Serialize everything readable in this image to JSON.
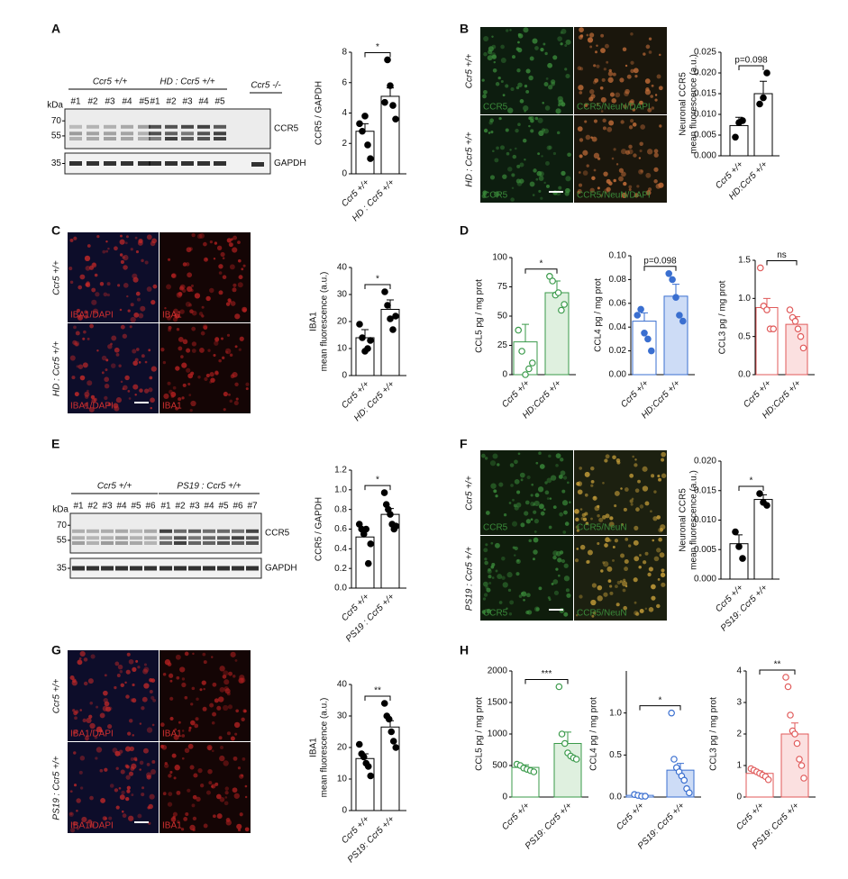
{
  "panels": [
    "A",
    "B",
    "C",
    "D",
    "E",
    "F",
    "G",
    "H"
  ],
  "blot_A": {
    "groups": [
      "Ccr5 +/+",
      "HD : Ccr5 +/+",
      "Ccr5 -/-"
    ],
    "lanes": [
      "#1",
      "#2",
      "#3",
      "#4",
      "#5",
      "#1",
      "#2",
      "#3",
      "#4",
      "#5"
    ],
    "kda": "kDa",
    "markers": [
      "70",
      "55",
      "35"
    ],
    "bands": [
      "CCR5",
      "GAPDH"
    ]
  },
  "blot_E": {
    "groups": [
      "Ccr5 +/+",
      "PS19 : Ccr5 +/+"
    ],
    "lanes": [
      "#1",
      "#2",
      "#3",
      "#4",
      "#5",
      "#6",
      "#1",
      "#2",
      "#3",
      "#4",
      "#5",
      "#6",
      "#7"
    ],
    "kda": "kDa",
    "markers": [
      "70",
      "55",
      "35"
    ],
    "bands": [
      "CCR5",
      "GAPDH"
    ]
  },
  "image_B": {
    "rows": [
      "Ccr5 +/+",
      "HD : Ccr5 +/+"
    ],
    "channels": [
      "CCR5",
      "CCR5/NeuN/DAPI"
    ]
  },
  "image_C": {
    "rows": [
      "Ccr5 +/+",
      "HD : Ccr5 +/+"
    ],
    "channels": [
      "IBA1/DAPI",
      "IBA1"
    ]
  },
  "image_F": {
    "rows": [
      "Ccr5 +/+",
      "PS19 : Ccr5 +/+"
    ],
    "channels": [
      "CCR5",
      "CCR5/NeuN"
    ]
  },
  "image_G": {
    "rows": [
      "Ccr5 +/+",
      "PS19 : Ccr5 +/+"
    ],
    "channels": [
      "IBA1/DAPI",
      "IBA1"
    ]
  },
  "chart_data": [
    {
      "type": "bar",
      "ylabel": [
        "CCR5 / GAPDH"
      ],
      "categories": [
        "Ccr5 +/+",
        "HD : Ccr5 +/+"
      ],
      "values": [
        2.8,
        5.1
      ],
      "errors": [
        0.5,
        0.55
      ],
      "points": [
        [
          3.3,
          2.8,
          3.8,
          1.9,
          1.0
        ],
        [
          4.7,
          7.5,
          5.8,
          4.5,
          3.6
        ]
      ],
      "ylim": [
        0,
        8
      ],
      "yticks": [
        0,
        2,
        4,
        6,
        8
      ],
      "annotation": "*",
      "color": "#000000",
      "bar_fills": [
        "#ffffff",
        "#ffffff"
      ],
      "open_points": false
    },
    {
      "type": "bar",
      "ylabel": [
        "Neuronal CCR5",
        "mean fluorescence (a.u.)"
      ],
      "categories": [
        "Ccr5 +/+",
        "HD:Ccr5 +/+"
      ],
      "values": [
        0.0073,
        0.015
      ],
      "errors": [
        0.002,
        0.003
      ],
      "points": [
        [
          0.0045,
          0.008,
          0.0085
        ],
        [
          0.0125,
          0.014,
          0.02
        ]
      ],
      "ylim": [
        0,
        0.025
      ],
      "yticks": [
        {
          "value": 0,
          "label": "0.000"
        },
        0.005,
        {
          "value": 0.01,
          "label": "0.010"
        },
        0.015,
        {
          "value": 0.02,
          "label": "0.020"
        },
        0.025
      ],
      "annotation": "p=0.098",
      "color": "#000000",
      "bar_fills": [
        "#ffffff",
        "#ffffff"
      ],
      "open_points": false
    },
    {
      "type": "bar",
      "ylabel": [
        "IBA1",
        "mean fluorescence (a.u.)"
      ],
      "categories": [
        "Ccr5 +/+",
        "HD: Ccr5 +/+"
      ],
      "values": [
        14,
        24.5
      ],
      "errors": [
        3,
        3.5
      ],
      "points": [
        [
          19,
          14,
          9,
          10,
          13
        ],
        [
          31,
          26,
          21,
          17,
          22
        ]
      ],
      "ylim": [
        0,
        40
      ],
      "yticks": [
        0,
        10,
        20,
        30,
        40
      ],
      "annotation": "*",
      "color": "#000000",
      "bar_fills": [
        "#ffffff",
        "#ffffff"
      ],
      "open_points": false
    },
    {
      "type": "bar",
      "ylabel": [
        "CCL5 pg / mg prot"
      ],
      "categories": [
        "Ccr5 +/+",
        "HD:Ccr5 +/+"
      ],
      "values": [
        28,
        70
      ],
      "errors": [
        15,
        10
      ],
      "points": [
        [
          38,
          20,
          0,
          5,
          10
        ],
        [
          84,
          80,
          68,
          70,
          55,
          60
        ]
      ],
      "ylim": [
        0,
        100
      ],
      "yticks": [
        0,
        25,
        50,
        75,
        100
      ],
      "annotation": "*",
      "color": "#3a9a4a",
      "bar_fills": [
        "#ffffff",
        "#dff0df"
      ],
      "open_points": true
    },
    {
      "type": "bar",
      "ylabel": [
        "CCL4 pg / mg prot"
      ],
      "categories": [
        "Ccr5 +/+",
        "HD:Ccr5 +/+"
      ],
      "values": [
        0.045,
        0.066
      ],
      "errors": [
        0.007,
        0.01
      ],
      "points": [
        [
          0.05,
          0.055,
          0.035,
          0.03,
          0.02
        ],
        [
          0.085,
          0.08,
          0.065,
          0.05,
          0.045
        ]
      ],
      "ylim": [
        0,
        0.1
      ],
      "yticks": [
        {
          "value": 0,
          "label": "0.00"
        },
        0.02,
        0.04,
        0.06,
        0.08,
        {
          "value": 0.1,
          "label": "0.10"
        }
      ],
      "annotation": "p=0.098",
      "color": "#3a6fd0",
      "bar_fills": [
        "#ffffff",
        "#cddcf6"
      ],
      "open_points": false
    },
    {
      "type": "bar",
      "ylabel": [
        "CCL3 pg / mg prot"
      ],
      "categories": [
        "Ccr5 +/+",
        "HD:Ccr5 +/+"
      ],
      "values": [
        0.88,
        0.66
      ],
      "errors": [
        0.12,
        0.1
      ],
      "points": [
        [
          1.4,
          0.9,
          0.85,
          0.6,
          0.6
        ],
        [
          0.85,
          0.75,
          0.7,
          0.6,
          0.5,
          0.35
        ]
      ],
      "ylim": [
        0,
        1.5
      ],
      "yticks": [
        {
          "value": 0,
          "label": "0.0"
        },
        0.5,
        {
          "value": 1,
          "label": "1.0"
        },
        1.5
      ],
      "annotation": "ns",
      "color": "#e05a5a",
      "bar_fills": [
        "#ffffff",
        "#fbe0e0"
      ],
      "open_points": true
    },
    {
      "type": "bar",
      "ylabel": [
        "CCR5 / GAPDH"
      ],
      "categories": [
        "Ccr5 +/+",
        "PS19 : Ccr5 +/+"
      ],
      "values": [
        0.52,
        0.75
      ],
      "errors": [
        0.08,
        0.06
      ],
      "points": [
        [
          0.65,
          0.6,
          0.55,
          0.6,
          0.25,
          0.45
        ],
        [
          0.97,
          0.85,
          0.8,
          0.75,
          0.65,
          0.6,
          0.63
        ]
      ],
      "ylim": [
        0,
        1.2
      ],
      "yticks": [
        {
          "value": 0,
          "label": "0.0"
        },
        0.2,
        0.4,
        0.6,
        0.8,
        {
          "value": 1,
          "label": "1.0"
        },
        1.2
      ],
      "annotation": "*",
      "color": "#000000",
      "bar_fills": [
        "#ffffff",
        "#ffffff"
      ],
      "open_points": false
    },
    {
      "type": "bar",
      "ylabel": [
        "Neuronal CCR5",
        "mean fluorescence (a.u.)"
      ],
      "categories": [
        "Ccr5 +/+",
        "PS19: Ccr5 +/+"
      ],
      "values": [
        0.006,
        0.0135
      ],
      "errors": [
        0.0015,
        0.0008
      ],
      "points": [
        [
          0.008,
          0.0055,
          0.0035
        ],
        [
          0.0145,
          0.013,
          0.0125
        ]
      ],
      "ylim": [
        0,
        0.02
      ],
      "yticks": [
        {
          "value": 0,
          "label": "0.000"
        },
        0.005,
        {
          "value": 0.01,
          "label": "0.010"
        },
        0.015,
        {
          "value": 0.02,
          "label": "0.020"
        }
      ],
      "annotation": "*",
      "color": "#000000",
      "bar_fills": [
        "#ffffff",
        "#ffffff"
      ],
      "open_points": false
    },
    {
      "type": "bar",
      "ylabel": [
        "IBA1",
        "mean fluorescence (a.u.)"
      ],
      "categories": [
        "Ccr5 +/+",
        "PS19: Ccr5 +/+"
      ],
      "values": [
        16.5,
        26.5
      ],
      "errors": [
        1.5,
        2
      ],
      "points": [
        [
          21,
          18,
          17,
          15,
          14,
          11
        ],
        [
          34,
          30,
          29,
          25,
          22,
          20
        ]
      ],
      "ylim": [
        0,
        40
      ],
      "yticks": [
        0,
        10,
        20,
        30,
        40
      ],
      "annotation": "**",
      "color": "#000000",
      "bar_fills": [
        "#ffffff",
        "#ffffff"
      ],
      "open_points": false
    },
    {
      "type": "bar",
      "ylabel": [
        "CCL5 pg / mg prot"
      ],
      "categories": [
        "Ccr5 +/+",
        "PS19: Ccr5 +/+"
      ],
      "values": [
        470,
        850
      ],
      "errors": [
        40,
        180
      ],
      "points": [
        [
          520,
          500,
          460,
          440,
          420,
          400
        ],
        [
          1750,
          1000,
          850,
          700,
          650,
          620,
          600
        ]
      ],
      "ylim": [
        0,
        2000
      ],
      "yticks": [
        0,
        500,
        1000,
        1500,
        2000
      ],
      "annotation": "***",
      "color": "#3a9a4a",
      "bar_fills": [
        "#ffffff",
        "#dff0df"
      ],
      "open_points": true
    },
    {
      "type": "bar",
      "ylabel": [
        "CCL4 pg / mg prot"
      ],
      "categories": [
        "Ccr5 +/+",
        "PS19: Ccr5 +/+"
      ],
      "values": [
        0.02,
        0.32
      ],
      "errors": [
        0.01,
        0.08
      ],
      "points": [
        [
          0.03,
          0.02,
          0.01,
          0.01
        ],
        [
          1.0,
          0.45,
          0.35,
          0.3,
          0.25,
          0.2,
          0.1,
          0.05
        ]
      ],
      "ylim": [
        0,
        1.5
      ],
      "yticks": [
        {
          "value": 0,
          "label": "0.0"
        },
        0.5,
        {
          "value": 1,
          "label": "1.0"
        }
      ],
      "annotation": "*",
      "color": "#3a6fd0",
      "bar_fills": [
        "#ffffff",
        "#cddcf6"
      ],
      "open_points": true
    },
    {
      "type": "bar",
      "ylabel": [
        "CCL3 pg / mg prot"
      ],
      "categories": [
        "Ccr5 +/+",
        "PS19: Ccr5 +/+"
      ],
      "values": [
        0.75,
        2.0
      ],
      "errors": [
        0.08,
        0.35
      ],
      "points": [
        [
          0.9,
          0.85,
          0.8,
          0.75,
          0.7,
          0.65,
          0.55
        ],
        [
          3.8,
          3.5,
          2.6,
          2.1,
          2.0,
          1.7,
          1.2,
          1.0,
          0.6
        ]
      ],
      "ylim": [
        0,
        4
      ],
      "yticks": [
        0,
        1,
        2,
        3,
        4
      ],
      "annotation": "**",
      "color": "#e05a5a",
      "bar_fills": [
        "#ffffff",
        "#fbe0e0"
      ],
      "open_points": true
    }
  ]
}
